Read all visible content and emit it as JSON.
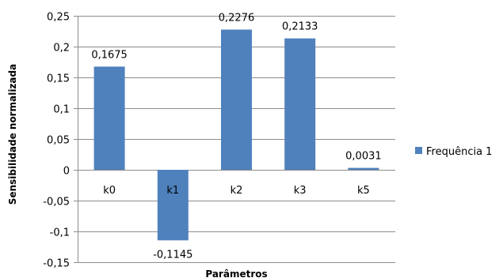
{
  "chart_data": {
    "type": "bar",
    "categories": [
      "k0",
      "k1",
      "k2",
      "k3",
      "k5"
    ],
    "series": [
      {
        "name": "Frequência 1",
        "values": [
          0.1675,
          -0.1145,
          0.2276,
          0.2133,
          0.0031
        ],
        "color": "#4f81bd"
      }
    ],
    "data_labels": [
      "0,1675",
      "-0,1145",
      "0,2276",
      "0,2133",
      "0,0031"
    ],
    "y_ticks": [
      0.25,
      0.2,
      0.15,
      0.1,
      0.05,
      0,
      -0.05,
      -0.1,
      -0.15
    ],
    "y_tick_labels": [
      "0,25",
      "0,2",
      "0,15",
      "0,1",
      "0,05",
      "0",
      "-0,05",
      "-0,1",
      "-0,15"
    ],
    "ylim": [
      -0.15,
      0.25
    ],
    "xlabel": "Parâmetros",
    "ylabel": "Sensibilidade normalizada",
    "grid": true,
    "legend_position": "right",
    "gridline_color": "#8c8c8c"
  }
}
